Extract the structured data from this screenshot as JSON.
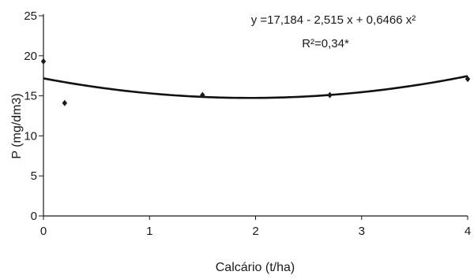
{
  "chart_data": {
    "type": "scatter",
    "xlabel": "Calcário (t/ha)",
    "ylabel": "P (mg/dm3)",
    "xlim": [
      0,
      4
    ],
    "ylim": [
      0,
      25
    ],
    "x_ticks": [
      "0",
      "1",
      "2",
      "3",
      "4"
    ],
    "y_ticks": [
      "0",
      "5",
      "10",
      "15",
      "20",
      "25"
    ],
    "grid": false,
    "series": [
      {
        "points": [
          {
            "x": 0,
            "y": 19.3
          },
          {
            "x": 0.2,
            "y": 14.1
          },
          {
            "x": 1.5,
            "y": 15.1
          },
          {
            "x": 2.7,
            "y": 15.1
          },
          {
            "x": 4,
            "y": 17.1
          }
        ]
      }
    ],
    "trendline": {
      "type": "quadratic",
      "coefficients": [
        17.184,
        -2.515,
        0.6466
      ],
      "equation": "y =17,184 - 2,515 x + 0,6466 x²",
      "r_squared": "R²=0,34*"
    },
    "colors": {
      "marker": "#1a1a1a",
      "curve": "#111111",
      "axis": "#1a1a1a"
    }
  }
}
